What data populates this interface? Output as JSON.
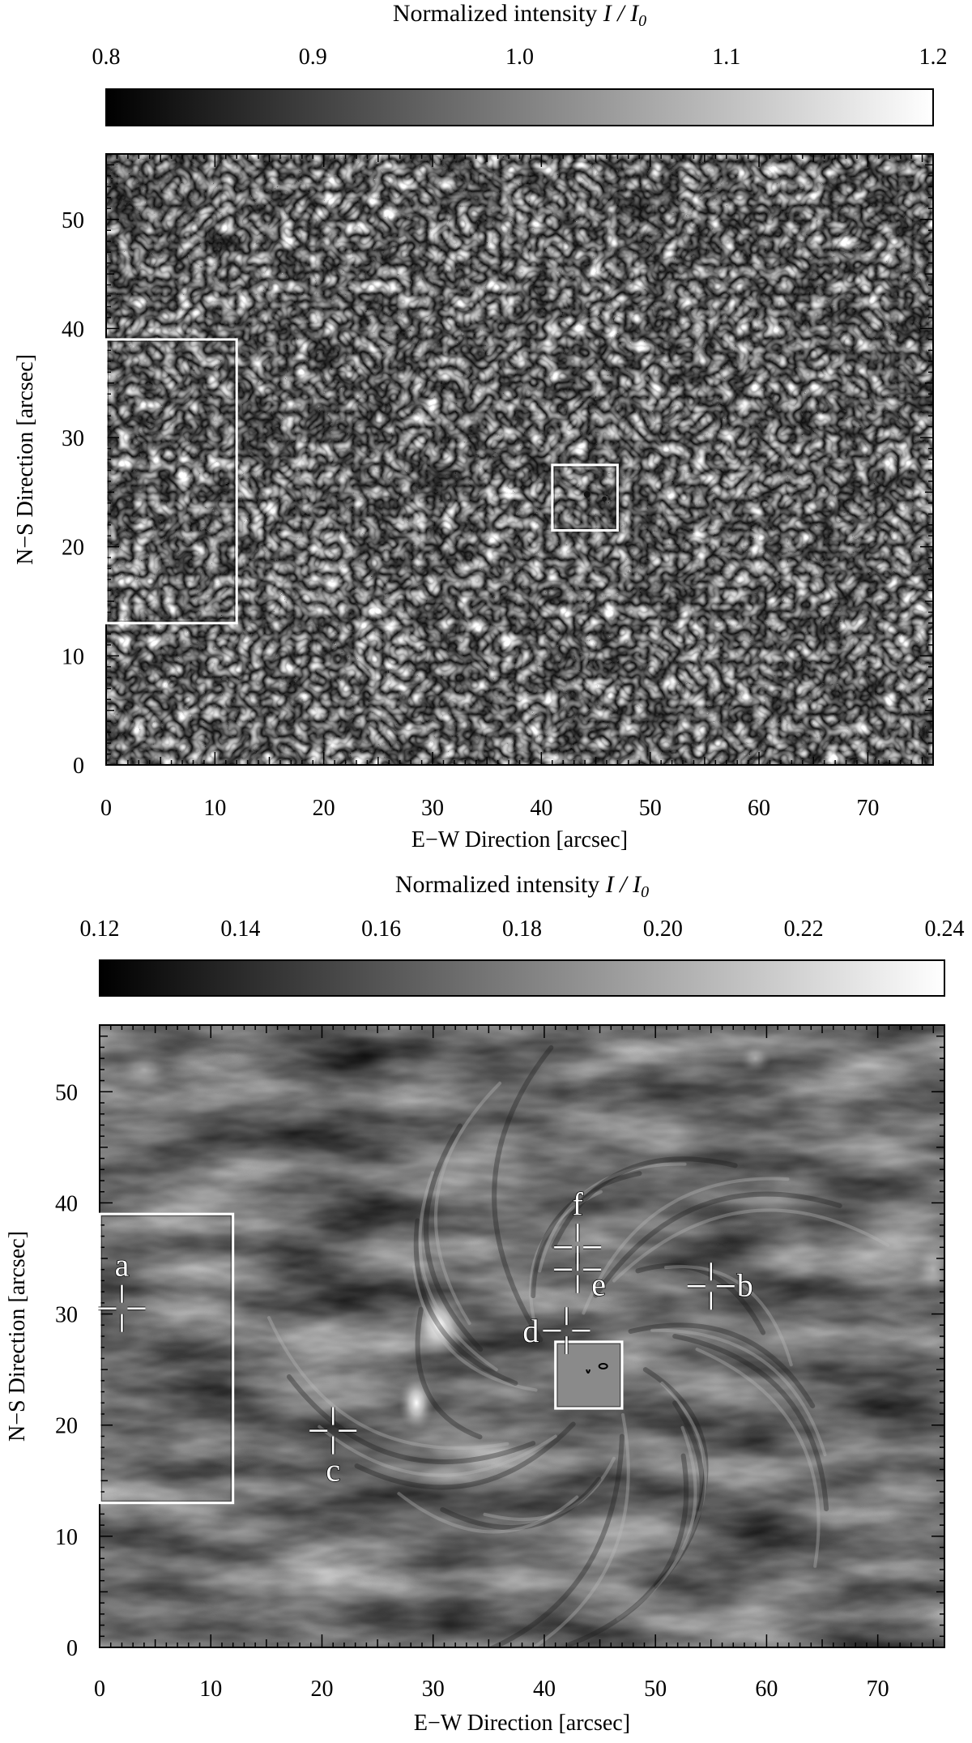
{
  "panels": [
    {
      "id": "continuum",
      "colorbar": {
        "title": "Normalized intensity",
        "symbol": "I / I",
        "subscript": "0",
        "ticks": [
          "0.8",
          "0.9",
          "1.0",
          "1.1",
          "1.2"
        ]
      },
      "xlabel": "E−W Direction   [arcsec]",
      "ylabel": "N−S Direction   [arcsec]",
      "xticks": [
        "0",
        "10",
        "20",
        "30",
        "40",
        "50",
        "60",
        "70"
      ],
      "yticks": [
        "0",
        "10",
        "20",
        "30",
        "40",
        "50"
      ],
      "texture": "granulation",
      "regions": [
        {
          "name": "box-left",
          "x0": 0,
          "x1": 12,
          "y0": 13,
          "y1": 39
        },
        {
          "name": "box-pore",
          "x0": 41,
          "x1": 47,
          "y0": 21.5,
          "y1": 27.5
        }
      ],
      "markers": []
    },
    {
      "id": "chromosphere",
      "colorbar": {
        "title": "Normalized intensity",
        "symbol": "I / I",
        "subscript": "0",
        "ticks": [
          "0.12",
          "0.14",
          "0.16",
          "0.18",
          "0.20",
          "0.22",
          "0.24"
        ]
      },
      "xlabel": "E−W Direction   [arcsec]",
      "ylabel": "N−S Direction   [arcsec]",
      "xticks": [
        "0",
        "10",
        "20",
        "30",
        "40",
        "50",
        "60",
        "70"
      ],
      "yticks": [
        "0",
        "10",
        "20",
        "30",
        "40",
        "50"
      ],
      "texture": "fibrils",
      "regions": [
        {
          "name": "box-left",
          "x0": 0,
          "x1": 12,
          "y0": 13,
          "y1": 39
        },
        {
          "name": "box-pore",
          "x0": 41,
          "x1": 47,
          "y0": 21.5,
          "y1": 27.5
        }
      ],
      "markers": [
        {
          "label": "a",
          "x": 2,
          "y": 30.5,
          "label_pos": "above"
        },
        {
          "label": "b",
          "x": 55,
          "y": 32.5,
          "label_pos": "right"
        },
        {
          "label": "c",
          "x": 21,
          "y": 19.5,
          "label_pos": "below"
        },
        {
          "label": "d",
          "x": 42,
          "y": 28.5,
          "label_pos": "left"
        },
        {
          "label": "e",
          "x": 43,
          "y": 34,
          "label_pos": "below-right"
        },
        {
          "label": "f",
          "x": 43,
          "y": 36,
          "label_pos": "above"
        }
      ]
    }
  ],
  "colors": {
    "frame": "#000000",
    "overlay": "#ffffff"
  }
}
